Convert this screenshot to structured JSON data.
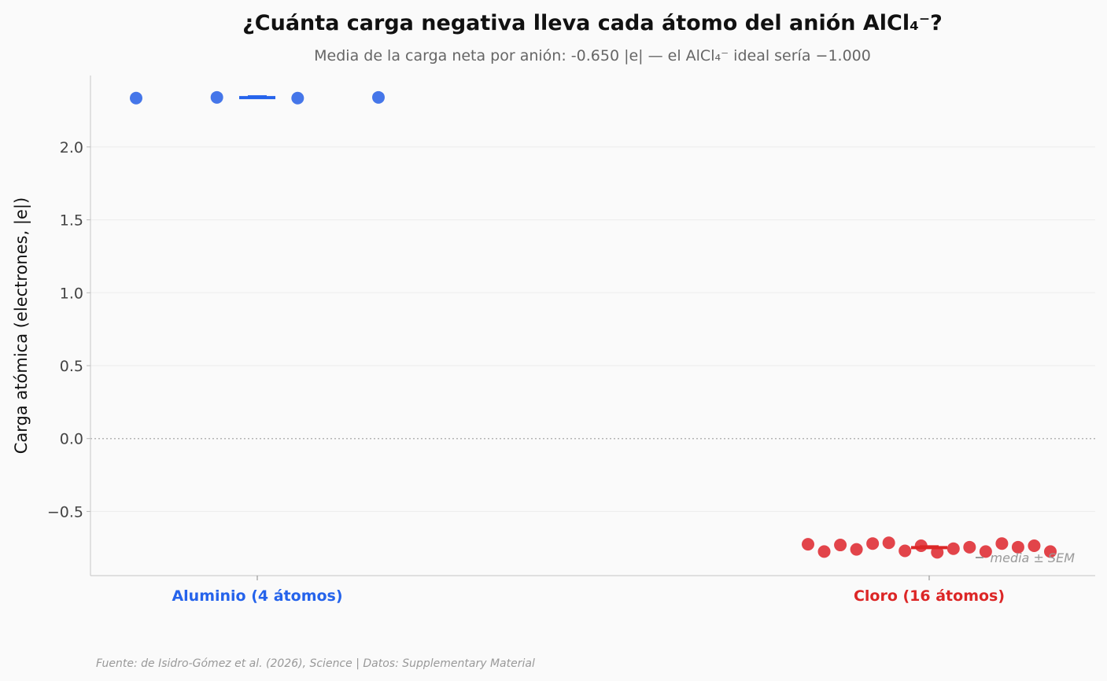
{
  "chart_data": {
    "type": "scatter",
    "title": "¿Cuánta carga negativa lleva cada átomo del anión AlCl₄⁻?",
    "subtitle": "Media de la carga neta por anión: -0.650 |e| — el AlCl₄⁻ ideal sería −1.000",
    "ylabel": "Carga atómica (electrones, |e|)",
    "xlabel": "",
    "ylim": [
      -0.94,
      2.49
    ],
    "yticks": [
      "2.0",
      "1.5",
      "1.0",
      "0.5",
      "0.0",
      "−0.5"
    ],
    "ytick_values": [
      2.0,
      1.5,
      1.0,
      0.5,
      0.0,
      -0.5
    ],
    "categories": [
      "Aluminio (4 átomos)",
      "Cloro (16 átomos)"
    ],
    "grid": true,
    "reference_line": 0.0,
    "series": [
      {
        "color": "#2563eb",
        "point_color": "#3b6fe8",
        "values": [
          2.335,
          2.34,
          2.335,
          2.34
        ],
        "mean": 2.338
      },
      {
        "color": "#dc2626",
        "point_color": "#e03a40",
        "values": [
          -0.725,
          -0.775,
          -0.73,
          -0.76,
          -0.72,
          -0.715,
          -0.77,
          -0.735,
          -0.78,
          -0.755,
          -0.745,
          -0.775,
          -0.72,
          -0.745,
          -0.735,
          -0.775
        ],
        "mean": -0.748
      }
    ],
    "legend_note": "media ± SEM",
    "source": "Fuente: de Isidro-Gómez et al. (2026), Science | Datos: Supplementary Material"
  }
}
